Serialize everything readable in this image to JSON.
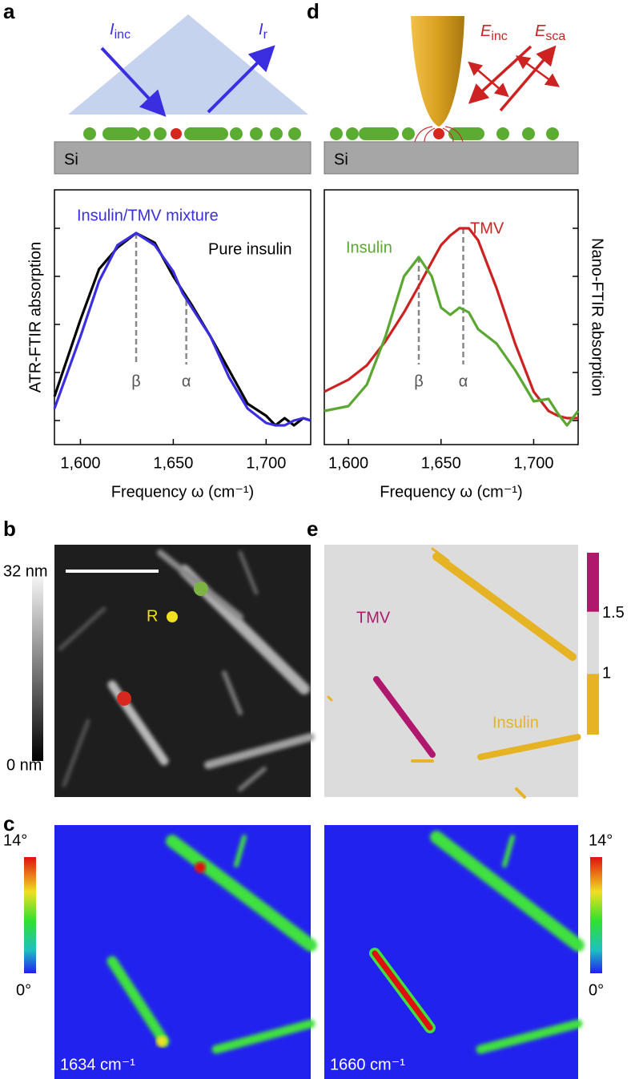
{
  "panel_labels": [
    "a",
    "d",
    "b",
    "e",
    "c"
  ],
  "schematic_a": {
    "incident": {
      "symbol": "I",
      "sub": "inc"
    },
    "reflected": {
      "symbol": "I",
      "sub": "r"
    },
    "substrate": "Si"
  },
  "schematic_d": {
    "incident": {
      "symbol": "E",
      "sub": "inc"
    },
    "scattered": {
      "symbol": "E",
      "sub": "sca"
    },
    "substrate": "Si"
  },
  "chart_data": [
    {
      "type": "line",
      "ylabel": "ATR-FTIR absorption",
      "xlabel": "Frequency ω (cm⁻¹)",
      "x": [
        1586,
        1600,
        1610,
        1620,
        1630,
        1640,
        1650,
        1655,
        1660,
        1670,
        1680,
        1690,
        1700,
        1705,
        1710,
        1715,
        1720,
        1724
      ],
      "series": [
        {
          "name": "Pure insulin",
          "color": "#000000",
          "values": [
            0.2,
            0.52,
            0.73,
            0.82,
            0.88,
            0.84,
            0.7,
            0.64,
            0.58,
            0.45,
            0.31,
            0.17,
            0.12,
            0.08,
            0.11,
            0.08,
            0.11,
            0.1
          ]
        },
        {
          "name": "Insulin/TMV mixture",
          "color": "#3a2ee0",
          "values": [
            0.15,
            0.45,
            0.68,
            0.83,
            0.88,
            0.83,
            0.72,
            0.63,
            0.57,
            0.45,
            0.28,
            0.15,
            0.09,
            0.08,
            0.08,
            0.1,
            0.11,
            0.1
          ]
        }
      ],
      "annotations": [
        {
          "text": "β",
          "x": 1630,
          "y": 0.88
        },
        {
          "text": "α",
          "x": 1657,
          "y": 0.6
        }
      ],
      "xlim": [
        1586,
        1724
      ],
      "xticks": [
        {
          "value": 1600,
          "label": "1,600"
        },
        {
          "value": 1650,
          "label": "1,650"
        },
        {
          "value": 1700,
          "label": "1,700"
        }
      ],
      "ylim": [
        0,
        1.06
      ],
      "yticks": [
        0.1,
        0.3,
        0.5,
        0.7,
        0.9
      ]
    },
    {
      "type": "line",
      "ylabel": "Nano-FTIR absorption",
      "xlabel": "Frequency ω (cm⁻¹)",
      "x": [
        1587,
        1600,
        1610,
        1620,
        1630,
        1638,
        1645,
        1650,
        1655,
        1660,
        1665,
        1670,
        1680,
        1690,
        1700,
        1708,
        1713,
        1718,
        1724
      ],
      "series": [
        {
          "name": "TMV",
          "color": "#cc2222",
          "values": [
            0.22,
            0.27,
            0.33,
            0.43,
            0.55,
            0.66,
            0.76,
            0.83,
            0.87,
            0.9,
            0.9,
            0.85,
            0.65,
            0.42,
            0.22,
            0.14,
            0.12,
            0.11,
            0.11
          ]
        },
        {
          "name": "Insulin",
          "color": "#5aa832",
          "values": [
            0.14,
            0.16,
            0.25,
            0.45,
            0.7,
            0.78,
            0.7,
            0.57,
            0.54,
            0.57,
            0.55,
            0.48,
            0.42,
            0.31,
            0.18,
            0.19,
            0.13,
            0.08,
            0.14
          ]
        }
      ],
      "annotations": [
        {
          "text": "β",
          "x": 1638,
          "y": 0.78
        },
        {
          "text": "α",
          "x": 1662,
          "y": 0.9
        }
      ],
      "xlim": [
        1587,
        1724
      ],
      "xticks": [
        {
          "value": 1600,
          "label": "1,600"
        },
        {
          "value": 1650,
          "label": "1,650"
        },
        {
          "value": 1700,
          "label": "1,700"
        }
      ],
      "ylim": [
        0,
        1.06
      ],
      "yticks": [
        0.1,
        0.3,
        0.5,
        0.7,
        0.9
      ]
    }
  ],
  "topography": {
    "colorbar_max": "32 nm",
    "colorbar_min": "0 nm",
    "reference_label": "R"
  },
  "ratio_map": {
    "tmv_label": "TMV",
    "insulin_label": "Insulin",
    "colorbar_lim": [
      0.5,
      2
    ],
    "colorbar_ticks": [
      1.5,
      1
    ]
  },
  "phase_maps": {
    "labels": [
      "1634 cm⁻¹",
      "1660 cm⁻¹"
    ],
    "colorbar_lim": [
      0,
      14
    ],
    "colorbar_ticks": [
      {
        "value": 14,
        "label": "14°"
      },
      {
        "value": 0,
        "label": "0°"
      }
    ]
  }
}
